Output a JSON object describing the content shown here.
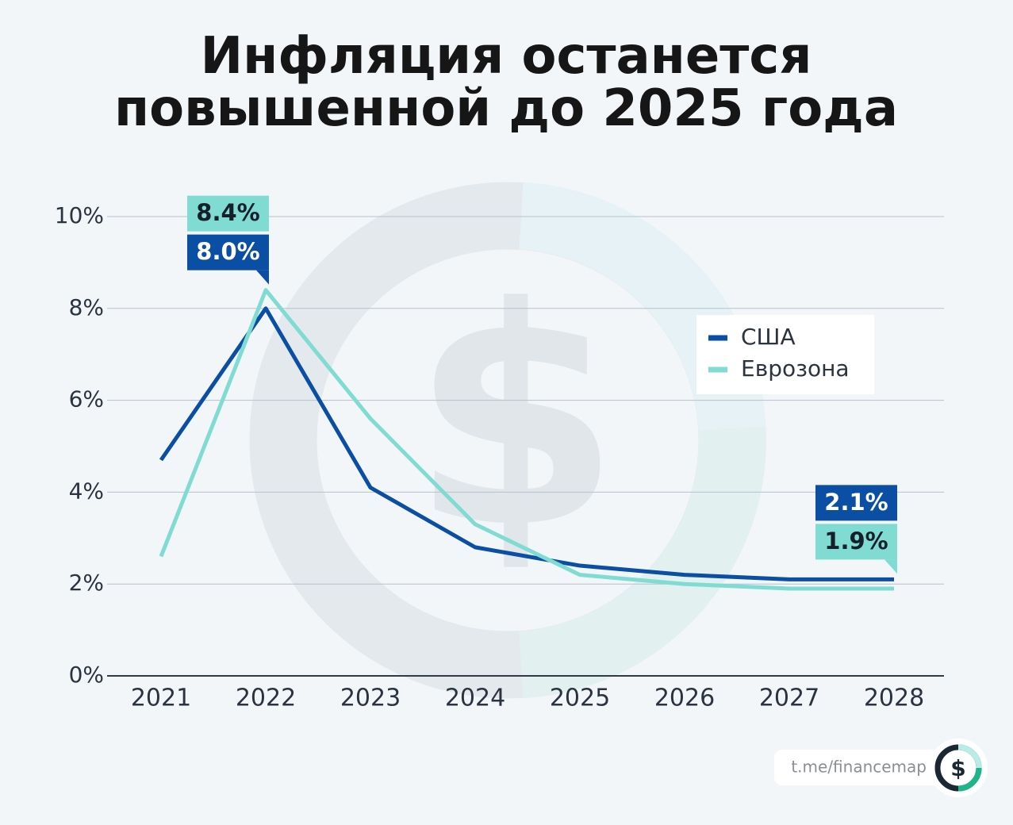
{
  "chart_data": {
    "type": "line",
    "title": "Инфляция останется повышенной до 2025 года",
    "categories": [
      "2021",
      "2022",
      "2023",
      "2024",
      "2025",
      "2026",
      "2027",
      "2028"
    ],
    "series": [
      {
        "name": "США",
        "color": "#0a4fa3",
        "values": [
          4.7,
          8.0,
          4.1,
          2.8,
          2.4,
          2.2,
          2.1,
          2.1
        ],
        "value_labels": [
          null,
          "8.0%",
          null,
          null,
          null,
          null,
          null,
          "2.1%"
        ]
      },
      {
        "name": "Еврозона",
        "color": "#80dcd3",
        "values": [
          2.6,
          8.4,
          5.6,
          3.3,
          2.2,
          2.0,
          1.9,
          1.9
        ],
        "value_labels": [
          null,
          "8.4%",
          null,
          null,
          null,
          null,
          null,
          "1.9%"
        ]
      }
    ],
    "ylim": [
      0,
      10
    ],
    "yticks": [
      {
        "value": 0,
        "label": "0%"
      },
      {
        "value": 2,
        "label": "2%"
      },
      {
        "value": 4,
        "label": "4%"
      },
      {
        "value": 6,
        "label": "6%"
      },
      {
        "value": 8,
        "label": "8%"
      },
      {
        "value": 10,
        "label": "10%"
      }
    ],
    "grid": true,
    "legend": "right",
    "source": "t.me/financemap"
  }
}
